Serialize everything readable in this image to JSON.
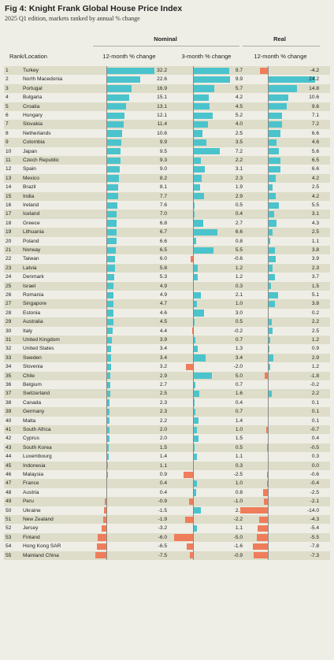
{
  "title": "Fig 4: Knight Frank Global House Price Index",
  "subtitle": "2025 Q1 edition, markets ranked by annual % change",
  "headers": {
    "nominal": "Nominal",
    "real": "Real",
    "rank_location": "Rank/Location",
    "col1": "12-month % change",
    "col2": "3-month % change",
    "col3": "12-month % change"
  },
  "colors": {
    "positive": "#4bc3cc",
    "negative": "#ef7d5b",
    "shade": "#deddc9",
    "background": "#efeee6"
  },
  "chart_data": {
    "type": "table",
    "columns": [
      "Rank",
      "Location",
      "Nominal 12-month % change",
      "Nominal 3-month % change",
      "Real 12-month % change"
    ],
    "rows": [
      {
        "rank": "1",
        "location": "Turkey",
        "n12": "32.2",
        "n3": "9.7",
        "r12": "-4.2"
      },
      {
        "rank": "2",
        "location": "North Macedonia",
        "n12": "22.6",
        "n3": "9.9",
        "r12": "24.2"
      },
      {
        "rank": "3",
        "location": "Portugal",
        "n12": "16.9",
        "n3": "5.7",
        "r12": "14.8"
      },
      {
        "rank": "4",
        "location": "Bulgaria",
        "n12": "15.1",
        "n3": "4.2",
        "r12": "10.6"
      },
      {
        "rank": "5",
        "location": "Croatia",
        "n12": "13.1",
        "n3": "4.5",
        "r12": "9.6"
      },
      {
        "rank": "6",
        "location": "Hungary",
        "n12": "12.1",
        "n3": "5.2",
        "r12": "7.1"
      },
      {
        "rank": "7",
        "location": "Slovakia",
        "n12": "11.4",
        "n3": "4.0",
        "r12": "7.2"
      },
      {
        "rank": "8",
        "location": "Netherlands",
        "n12": "10.6",
        "n3": "2.5",
        "r12": "6.6"
      },
      {
        "rank": "9",
        "location": "Colombia",
        "n12": "9.9",
        "n3": "3.5",
        "r12": "4.6"
      },
      {
        "rank": "10",
        "location": "Japan",
        "n12": "9.5",
        "n3": "7.2",
        "r12": "5.6"
      },
      {
        "rank": "11",
        "location": "Czech Republic",
        "n12": "9.3",
        "n3": "2.2",
        "r12": "6.5"
      },
      {
        "rank": "12",
        "location": "Spain",
        "n12": "9.0",
        "n3": "3.1",
        "r12": "6.6"
      },
      {
        "rank": "13",
        "location": "Mexico",
        "n12": "8.2",
        "n3": "2.3",
        "r12": "4.2"
      },
      {
        "rank": "14",
        "location": "Brazil",
        "n12": "8.1",
        "n3": "1.9",
        "r12": "2.5"
      },
      {
        "rank": "15",
        "location": "India",
        "n12": "7.7",
        "n3": "2.9",
        "r12": "4.2"
      },
      {
        "rank": "16",
        "location": "Ireland",
        "n12": "7.6",
        "n3": "0.5",
        "r12": "5.5"
      },
      {
        "rank": "17",
        "location": "Iceland",
        "n12": "7.0",
        "n3": "0.4",
        "r12": "3.1"
      },
      {
        "rank": "18",
        "location": "Greece",
        "n12": "6.8",
        "n3": "2.7",
        "r12": "4.3"
      },
      {
        "rank": "19",
        "location": "Lithuania",
        "n12": "6.7",
        "n3": "6.6",
        "r12": "2.5"
      },
      {
        "rank": "20",
        "location": "Poland",
        "n12": "6.6",
        "n3": "0.8",
        "r12": "1.1"
      },
      {
        "rank": "21",
        "location": "Norway",
        "n12": "6.5",
        "n3": "5.5",
        "r12": "3.8"
      },
      {
        "rank": "22",
        "location": "Taiwan",
        "n12": "6.0",
        "n3": "-0.6",
        "r12": "3.9"
      },
      {
        "rank": "23",
        "location": "Latvia",
        "n12": "5.8",
        "n3": "1.2",
        "r12": "2.3"
      },
      {
        "rank": "24",
        "location": "Denmark",
        "n12": "5.3",
        "n3": "1.2",
        "r12": "3.7"
      },
      {
        "rank": "25",
        "location": "Israel",
        "n12": "4.9",
        "n3": "0.3",
        "r12": "1.5"
      },
      {
        "rank": "26",
        "location": "Romania",
        "n12": "4.9",
        "n3": "2.1",
        "r12": "5.1"
      },
      {
        "rank": "27",
        "location": "Singapore",
        "n12": "4.7",
        "n3": "1.0",
        "r12": "3.8"
      },
      {
        "rank": "28",
        "location": "Estonia",
        "n12": "4.6",
        "n3": "3.0",
        "r12": "0.2"
      },
      {
        "rank": "29",
        "location": "Australia",
        "n12": "4.5",
        "n3": "0.5",
        "r12": "2.2"
      },
      {
        "rank": "30",
        "location": "Italy",
        "n12": "4.4",
        "n3": "-0.2",
        "r12": "2.5"
      },
      {
        "rank": "31",
        "location": "United Kingdom",
        "n12": "3.9",
        "n3": "0.7",
        "r12": "1.2"
      },
      {
        "rank": "32",
        "location": "United States",
        "n12": "3.4",
        "n3": "1.3",
        "r12": "0.9"
      },
      {
        "rank": "33",
        "location": "Sweden",
        "n12": "3.4",
        "n3": "3.4",
        "r12": "2.9"
      },
      {
        "rank": "34",
        "location": "Slovenia",
        "n12": "3.2",
        "n3": "-2.0",
        "r12": "1.2"
      },
      {
        "rank": "35",
        "location": "Chile",
        "n12": "2.9",
        "n3": "5.0",
        "r12": "-1.8"
      },
      {
        "rank": "36",
        "location": "Belgium",
        "n12": "2.7",
        "n3": "0.7",
        "r12": "-0.2"
      },
      {
        "rank": "37",
        "location": "Switzerland",
        "n12": "2.5",
        "n3": "1.6",
        "r12": "2.2"
      },
      {
        "rank": "38",
        "location": "Canada",
        "n12": "2.3",
        "n3": "0.4",
        "r12": "0.1"
      },
      {
        "rank": "39",
        "location": "Germany",
        "n12": "2.3",
        "n3": "0.7",
        "r12": "0.1"
      },
      {
        "rank": "40",
        "location": "Malta",
        "n12": "2.2",
        "n3": "1.4",
        "r12": "0.1"
      },
      {
        "rank": "41",
        "location": "South Africa",
        "n12": "2.0",
        "n3": "1.0",
        "r12": "-0.7"
      },
      {
        "rank": "42",
        "location": "Cyprus",
        "n12": "2.0",
        "n3": "1.5",
        "r12": "0.4"
      },
      {
        "rank": "43",
        "location": "South Korea",
        "n12": "1.5",
        "n3": "0.5",
        "r12": "-0.5"
      },
      {
        "rank": "44",
        "location": "Luxembourg",
        "n12": "1.4",
        "n3": "1.1",
        "r12": "0.3"
      },
      {
        "rank": "45",
        "location": "Indonesia",
        "n12": "1.1",
        "n3": "0.3",
        "r12": "0.0"
      },
      {
        "rank": "46",
        "location": "Malaysia",
        "n12": "0.9",
        "n3": "-2.5",
        "r12": "-0.6"
      },
      {
        "rank": "47",
        "location": "France",
        "n12": "0.4",
        "n3": "1.0",
        "r12": "-0.4"
      },
      {
        "rank": "48",
        "location": "Austria",
        "n12": "0.4",
        "n3": "0.8",
        "r12": "-2.5"
      },
      {
        "rank": "49",
        "location": "Peru",
        "n12": "-0.9",
        "n3": "-1.0",
        "r12": "-2.1"
      },
      {
        "rank": "50",
        "location": "Ukraine",
        "n12": "-1.5",
        "n3": "2.1",
        "r12": "-14.0"
      },
      {
        "rank": "51",
        "location": "New Zealand",
        "n12": "-1.9",
        "n3": "-2.2",
        "r12": "-4.3"
      },
      {
        "rank": "52",
        "location": "Jersey",
        "n12": "-3.2",
        "n3": "1.1",
        "r12": "-5.4"
      },
      {
        "rank": "53",
        "location": "Finland",
        "n12": "-6.0",
        "n3": "-5.0",
        "r12": "-5.5"
      },
      {
        "rank": "54",
        "location": "Hong Kong SAR",
        "n12": "-6.5",
        "n3": "-1.6",
        "r12": "-7.8"
      },
      {
        "rank": "55",
        "location": "Mainland China",
        "n12": "-7.5",
        "n3": "-0.9",
        "r12": "-7.3"
      }
    ]
  }
}
